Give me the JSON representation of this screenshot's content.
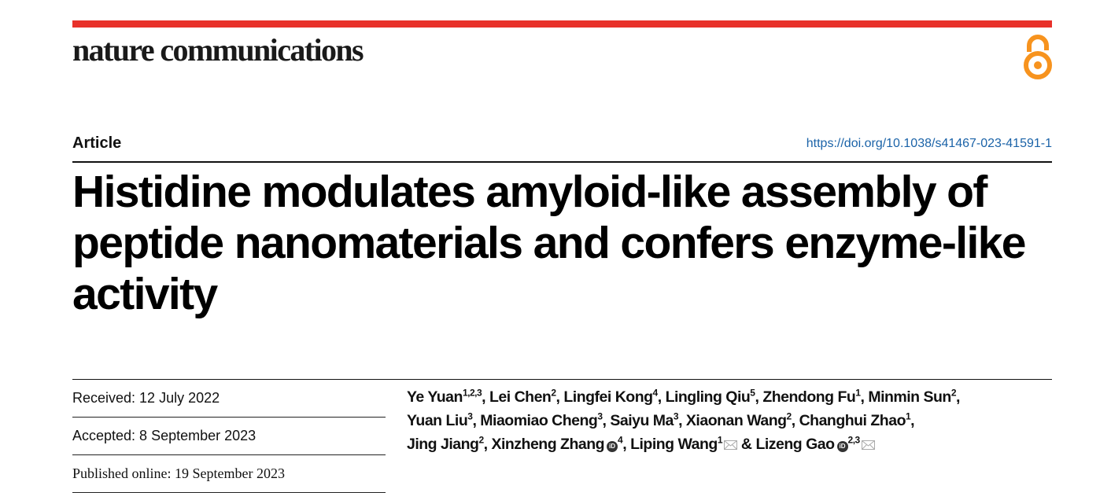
{
  "header": {
    "journal": "nature communications",
    "accent_color": "#e8312a",
    "open_access_icon": "open-access-lock-icon",
    "open_access_color": "#f7931e"
  },
  "article": {
    "type": "Article",
    "doi": "https://doi.org/10.1038/s41467-023-41591-1",
    "title": "Histidine modulates amyloid-like assembly of peptide nanomaterials and confers enzyme-like activity"
  },
  "dates": {
    "received": "Received: 12 July 2022",
    "accepted": "Accepted: 8 September 2023",
    "published": "Published online: 19 September 2023"
  },
  "authors": [
    {
      "name": "Ye Yuan",
      "aff": "1,2,3"
    },
    {
      "name": "Lei Chen",
      "aff": "2"
    },
    {
      "name": "Lingfei Kong",
      "aff": "4"
    },
    {
      "name": "Lingling Qiu",
      "aff": "5"
    },
    {
      "name": "Zhendong Fu",
      "aff": "1"
    },
    {
      "name": "Minmin Sun",
      "aff": "2"
    },
    {
      "name": "Yuan Liu",
      "aff": "3"
    },
    {
      "name": "Miaomiao Cheng",
      "aff": "3"
    },
    {
      "name": "Saiyu Ma",
      "aff": "3"
    },
    {
      "name": "Xiaonan Wang",
      "aff": "2"
    },
    {
      "name": "Changhui Zhao",
      "aff": "1"
    },
    {
      "name": "Jing Jiang",
      "aff": "2"
    },
    {
      "name": "Xinzheng Zhang",
      "aff": "4",
      "orcid": true
    },
    {
      "name": "Liping Wang",
      "aff": "1",
      "email": true
    },
    {
      "name": "Lizeng Gao",
      "aff": "2,3",
      "orcid": true,
      "email": true
    }
  ],
  "authors_separator": ", ",
  "authors_last_separator": " & ",
  "orcid_label": "iD"
}
